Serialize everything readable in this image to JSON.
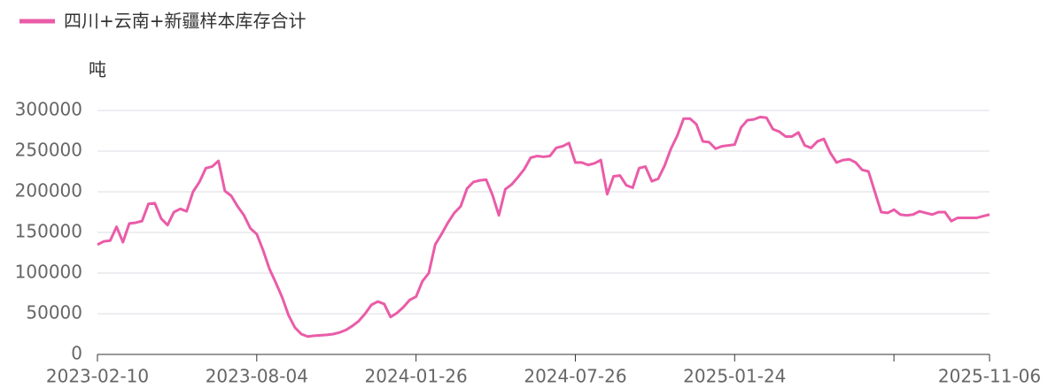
{
  "chart_data": {
    "type": "line",
    "legend_label": "四川+云南+新疆样本库存合计",
    "y_axis_label": "吨",
    "categories": [
      "2023-02-10",
      null,
      null,
      null,
      null,
      null,
      null,
      null,
      null,
      null,
      null,
      null,
      null,
      null,
      null,
      null,
      null,
      null,
      null,
      null,
      null,
      null,
      null,
      null,
      null,
      "2023-08-04",
      null,
      null,
      null,
      null,
      null,
      null,
      null,
      null,
      null,
      null,
      null,
      null,
      null,
      null,
      null,
      null,
      null,
      null,
      null,
      null,
      null,
      null,
      null,
      null,
      "2024-01-26",
      null,
      null,
      null,
      null,
      null,
      null,
      null,
      null,
      null,
      null,
      null,
      null,
      null,
      null,
      null,
      null,
      null,
      null,
      null,
      null,
      null,
      null,
      null,
      null,
      "2024-07-26",
      null,
      null,
      null,
      null,
      null,
      null,
      null,
      null,
      null,
      null,
      null,
      null,
      null,
      null,
      null,
      null,
      null,
      null,
      null,
      null,
      null,
      null,
      null,
      null,
      "2025-01-24",
      null,
      null,
      null,
      null,
      null,
      null,
      null,
      null,
      null,
      null,
      null,
      null,
      null,
      null,
      null,
      null,
      null,
      null,
      null,
      null,
      null,
      null,
      null,
      null,
      null,
      null,
      null,
      null,
      null,
      null,
      null,
      null,
      null,
      null,
      null,
      null,
      null,
      null,
      null,
      "2025-11-06"
    ],
    "series": [
      {
        "name": "四川+云南+新疆样本库存合计",
        "color": "#ea5ca8",
        "values": [
          135000,
          139000,
          140000,
          157000,
          138000,
          161000,
          162000,
          164000,
          185000,
          186000,
          167000,
          159000,
          175000,
          179000,
          176000,
          200000,
          212000,
          229000,
          231000,
          238000,
          201000,
          195000,
          182000,
          171000,
          155000,
          148000,
          128000,
          105000,
          88000,
          70000,
          48000,
          33000,
          25000,
          22000,
          23000,
          23500,
          24000,
          25000,
          27000,
          30000,
          35000,
          41000,
          50000,
          61000,
          65000,
          62000,
          46000,
          51000,
          58000,
          67000,
          71000,
          90000,
          100000,
          135000,
          148000,
          162000,
          174000,
          182000,
          204000,
          212000,
          214000,
          215000,
          196000,
          171000,
          203000,
          209000,
          218000,
          228000,
          242000,
          244000,
          243000,
          244000,
          254000,
          256000,
          260000,
          236000,
          236000,
          233000,
          235000,
          239000,
          197000,
          219000,
          220000,
          208000,
          205000,
          229000,
          231000,
          213000,
          216000,
          232000,
          253000,
          269000,
          290000,
          290000,
          283000,
          262000,
          261000,
          253000,
          256000,
          257000,
          258000,
          279000,
          288000,
          289000,
          292000,
          291000,
          277000,
          274000,
          268000,
          268000,
          273000,
          257000,
          254000,
          262000,
          265000,
          248000,
          236000,
          239000,
          240000,
          236000,
          227000,
          225000,
          200000,
          175000,
          174000,
          178000,
          172000,
          171000,
          172000,
          176000,
          174000,
          172000,
          175000,
          175000,
          164000,
          168000,
          168000,
          168000,
          168000,
          170000,
          172000
        ]
      }
    ],
    "ylim": [
      0,
      300000
    ],
    "yticks": [
      0,
      50000,
      100000,
      150000,
      200000,
      250000,
      300000
    ],
    "grid": true
  }
}
